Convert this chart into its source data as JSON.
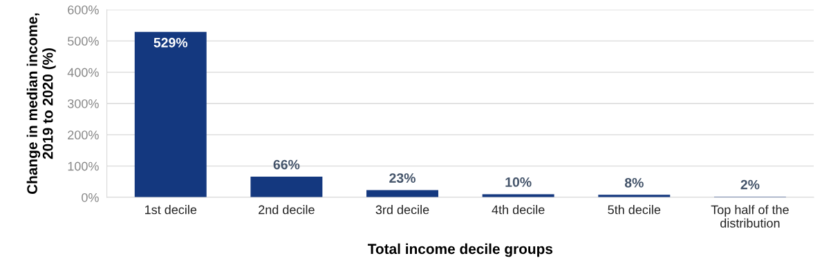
{
  "chart_data": {
    "type": "bar",
    "categories": [
      "1st decile",
      "2nd decile",
      "3rd decile",
      "4th decile",
      "5th decile",
      "Top half of the\ndistribution"
    ],
    "values": [
      529,
      66,
      23,
      10,
      8,
      2
    ],
    "value_labels": [
      "529%",
      "66%",
      "23%",
      "10%",
      "8%",
      "2%"
    ],
    "color": "#14387f",
    "xlabel": "Total income decile groups",
    "ylabel": "Change in median income,\n2019 to 2020 (%)",
    "ylim": [
      0,
      600
    ],
    "yticks": [
      {
        "value": 0,
        "label": "0%"
      },
      {
        "value": 100,
        "label": "100%"
      },
      {
        "value": 200,
        "label": "200%"
      },
      {
        "value": 300,
        "label": "300%"
      },
      {
        "value": 400,
        "label": "400%"
      },
      {
        "value": 500,
        "label": "500%"
      },
      {
        "value": 600,
        "label": "600%"
      }
    ],
    "grid": "y"
  }
}
